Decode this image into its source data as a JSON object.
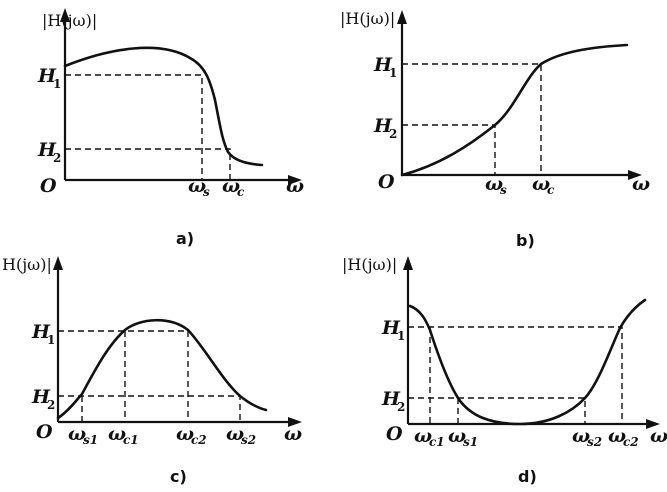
{
  "panels": [
    {
      "id": "a",
      "caption": "a)",
      "y_axis_label": "|H(jω)|",
      "origin": "O",
      "x_axis_symbol": "ω",
      "levels": [
        {
          "base": "H",
          "sub": "1"
        },
        {
          "base": "H",
          "sub": "2"
        }
      ],
      "freqs": [
        {
          "base": "ω",
          "sub": "s"
        },
        {
          "base": "ω",
          "sub": "c"
        }
      ],
      "filter_kind": "low-pass"
    },
    {
      "id": "b",
      "caption": "b)",
      "y_axis_label": "|H(jω)|",
      "origin": "O",
      "x_axis_symbol": "ω",
      "levels": [
        {
          "base": "H",
          "sub": "1"
        },
        {
          "base": "H",
          "sub": "2"
        }
      ],
      "freqs": [
        {
          "base": "ω",
          "sub": "s"
        },
        {
          "base": "ω",
          "sub": "c"
        }
      ],
      "filter_kind": "high-pass"
    },
    {
      "id": "c",
      "caption": "c)",
      "y_axis_label": "H(jω)|",
      "origin": "O",
      "x_axis_symbol": "ω",
      "levels": [
        {
          "base": "H",
          "sub": "1"
        },
        {
          "base": "H",
          "sub": "2"
        }
      ],
      "freqs": [
        {
          "base": "ω",
          "sub": "s1"
        },
        {
          "base": "ω",
          "sub": "c1"
        },
        {
          "base": "ω",
          "sub": "c2"
        },
        {
          "base": "ω",
          "sub": "s2"
        }
      ],
      "filter_kind": "band-pass"
    },
    {
      "id": "d",
      "caption": "d)",
      "y_axis_label": "|H(jω)|",
      "origin": "O",
      "x_axis_symbol": "ω",
      "levels": [
        {
          "base": "H",
          "sub": "1"
        },
        {
          "base": "H",
          "sub": "2"
        }
      ],
      "freqs": [
        {
          "base": "ω",
          "sub": "c1"
        },
        {
          "base": "ω",
          "sub": "s1"
        },
        {
          "base": "ω",
          "sub": "s2"
        },
        {
          "base": "ω",
          "sub": "c2"
        }
      ],
      "filter_kind": "band-stop"
    }
  ]
}
